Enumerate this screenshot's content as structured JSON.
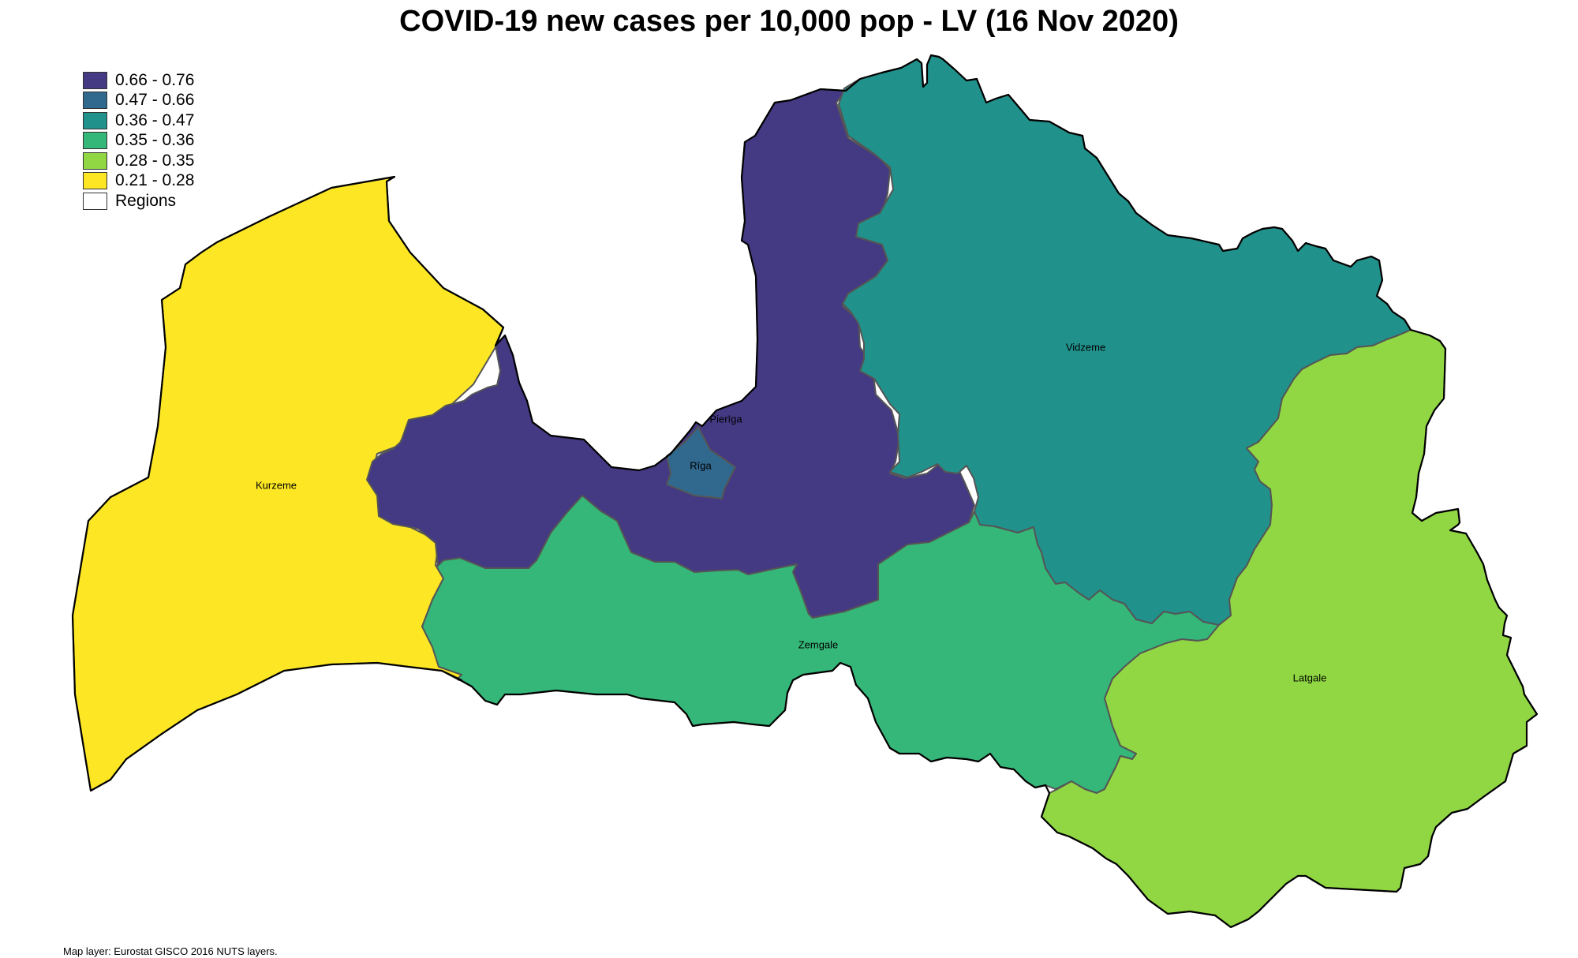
{
  "title": "COVID-19 new cases per 10,000 pop - LV (16 Nov 2020)",
  "legend": {
    "items": [
      {
        "label": "0.66 - 0.76",
        "color": "#443983"
      },
      {
        "label": "0.47 - 0.66",
        "color": "#31688e"
      },
      {
        "label": "0.36 - 0.47",
        "color": "#21918c"
      },
      {
        "label": "0.35 - 0.36",
        "color": "#35b779"
      },
      {
        "label": "0.28 - 0.35",
        "color": "#90d743"
      },
      {
        "label": "0.21 - 0.28",
        "color": "#fde725"
      },
      {
        "label": "Regions",
        "color": "#ffffff"
      }
    ]
  },
  "regions": {
    "kurzeme": {
      "name": "Kurzeme",
      "color": "#fde725"
    },
    "pieriga": {
      "name": "Pierīga",
      "color": "#443983"
    },
    "riga": {
      "name": "Rīga",
      "color": "#31688e"
    },
    "vidzeme": {
      "name": "Vidzeme",
      "color": "#21918c"
    },
    "zemgale": {
      "name": "Zemgale",
      "color": "#35b779"
    },
    "latgale": {
      "name": "Latgale",
      "color": "#90d743"
    }
  },
  "caption": "Map layer: Eurostat GISCO 2016 NUTS layers."
}
